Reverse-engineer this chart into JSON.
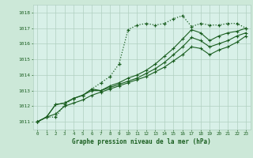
{
  "background_color": "#cce8d8",
  "plot_bg_color": "#d8f0e8",
  "grid_color": "#b0cfc0",
  "line_color": "#1a5e20",
  "text_color": "#1a5e20",
  "xlabel": "Graphe pression niveau de la mer (hPa)",
  "ylim": [
    1010.5,
    1018.5
  ],
  "xlim": [
    -0.5,
    23.5
  ],
  "yticks": [
    1011,
    1012,
    1013,
    1014,
    1015,
    1016,
    1017,
    1018
  ],
  "xticks": [
    0,
    1,
    2,
    3,
    4,
    5,
    6,
    7,
    8,
    9,
    10,
    11,
    12,
    13,
    14,
    15,
    16,
    17,
    18,
    19,
    20,
    21,
    22,
    23
  ],
  "series": [
    [
      1011.0,
      1011.3,
      1011.3,
      1012.1,
      1012.5,
      1012.7,
      1013.1,
      1013.5,
      1013.9,
      1014.7,
      1016.9,
      1017.2,
      1017.3,
      1017.2,
      1017.3,
      1017.6,
      1017.8,
      1017.1,
      1017.3,
      1017.2,
      1017.2,
      1017.3,
      1017.3,
      1017.0
    ],
    [
      1011.0,
      1011.3,
      1012.1,
      1012.2,
      1012.5,
      1012.7,
      1013.1,
      1013.0,
      1013.3,
      1013.5,
      1013.8,
      1014.0,
      1014.3,
      1014.7,
      1015.2,
      1015.7,
      1016.3,
      1016.9,
      1016.7,
      1016.2,
      1016.5,
      1016.7,
      1016.8,
      1017.0
    ],
    [
      1011.0,
      1011.3,
      1012.1,
      1012.2,
      1012.5,
      1012.7,
      1013.0,
      1013.0,
      1013.2,
      1013.4,
      1013.6,
      1013.8,
      1014.1,
      1014.4,
      1014.8,
      1015.3,
      1015.8,
      1016.4,
      1016.2,
      1015.8,
      1016.0,
      1016.2,
      1016.5,
      1016.7
    ],
    [
      1011.0,
      1011.3,
      1011.5,
      1012.0,
      1012.2,
      1012.4,
      1012.7,
      1012.9,
      1013.1,
      1013.3,
      1013.5,
      1013.7,
      1013.9,
      1014.2,
      1014.5,
      1014.9,
      1015.3,
      1015.8,
      1015.7,
      1015.3,
      1015.6,
      1015.8,
      1016.1,
      1016.5
    ]
  ]
}
